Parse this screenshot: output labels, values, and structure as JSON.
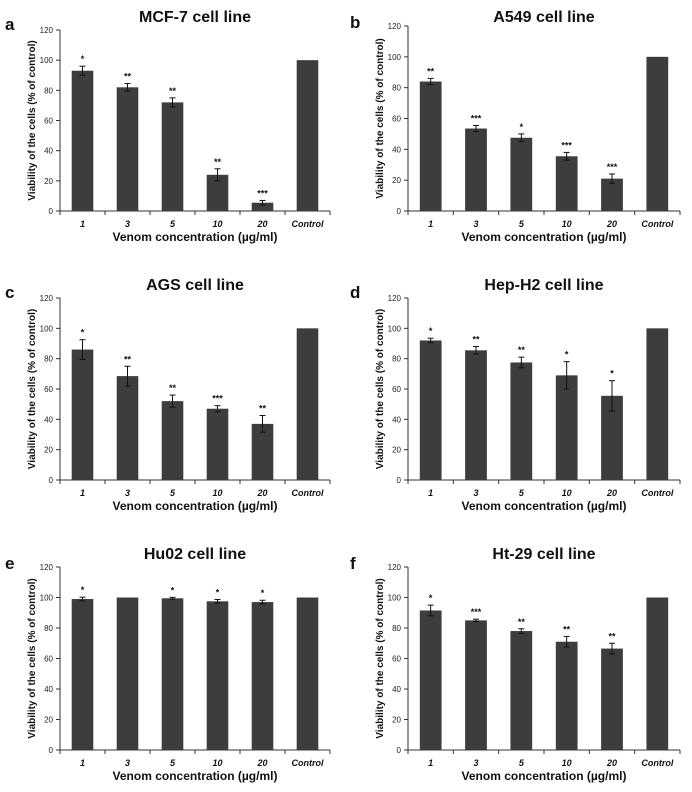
{
  "chart_data": [
    {
      "panel_letter": "a",
      "type": "bar",
      "title": "MCF-7 cell line",
      "ylabel": "Viability of the cells (% of control)",
      "xlabel": "Venom concentration (µg/ml)",
      "ylim": [
        0,
        120
      ],
      "yticks": [
        0,
        20,
        40,
        60,
        80,
        100,
        120
      ],
      "categories": [
        "1",
        "3",
        "5",
        "10",
        "20",
        "Control"
      ],
      "values": [
        93,
        82,
        72,
        24,
        5.5,
        100
      ],
      "errors": [
        3,
        2.5,
        3,
        4,
        1.5,
        0
      ],
      "significance": [
        "*",
        "**",
        "**",
        "**",
        "***",
        ""
      ],
      "grid": false,
      "color": "#3d3d3d"
    },
    {
      "panel_letter": "b",
      "type": "bar",
      "title": "A549 cell line",
      "ylabel": "Viability of the cells (% of control)",
      "xlabel": "Venom concentration (µg/ml)",
      "ylim": [
        0,
        120
      ],
      "yticks": [
        0,
        20,
        40,
        60,
        80,
        100,
        120
      ],
      "categories": [
        "1",
        "3",
        "5",
        "10",
        "20",
        "Control"
      ],
      "values": [
        84,
        53.5,
        47.5,
        35.5,
        21,
        100
      ],
      "errors": [
        2,
        2,
        2.5,
        2.5,
        3,
        0
      ],
      "significance": [
        "**",
        "***",
        "*",
        "***",
        "***",
        ""
      ],
      "grid": false,
      "color": "#3d3d3d"
    },
    {
      "panel_letter": "c",
      "type": "bar",
      "title": "AGS cell line",
      "ylabel": "Viability of the cells (% of control)",
      "xlabel": "Venom concentration (µg/ml)",
      "ylim": [
        0,
        120
      ],
      "yticks": [
        0,
        20,
        40,
        60,
        80,
        100,
        120
      ],
      "categories": [
        "1",
        "3",
        "5",
        "10",
        "20",
        "Control"
      ],
      "values": [
        86,
        68.5,
        52,
        47,
        37,
        100
      ],
      "errors": [
        6.5,
        6.5,
        4,
        2,
        5.5,
        0
      ],
      "significance": [
        "*",
        "**",
        "**",
        "***",
        "**",
        ""
      ],
      "grid": false,
      "color": "#3d3d3d"
    },
    {
      "panel_letter": "d",
      "type": "bar",
      "title": "Hep-H2 cell line",
      "ylabel": "Viability of the cells (% of control)",
      "xlabel": "Venom concentration (µg/ml)",
      "ylim": [
        0,
        120
      ],
      "yticks": [
        0,
        20,
        40,
        60,
        80,
        100,
        120
      ],
      "categories": [
        "1",
        "3",
        "5",
        "10",
        "20",
        "Control"
      ],
      "values": [
        92,
        85.5,
        77.5,
        69,
        55.5,
        100
      ],
      "errors": [
        1.5,
        2.5,
        3.5,
        9,
        10,
        0
      ],
      "significance": [
        "*",
        "**",
        "**",
        "*",
        "*",
        ""
      ],
      "grid": false,
      "color": "#3d3d3d"
    },
    {
      "panel_letter": "e",
      "type": "bar",
      "title": "Hu02 cell line",
      "ylabel": "Viability of the cells (% of control)",
      "xlabel": "Venom concentration (µg/ml)",
      "ylim": [
        0,
        120
      ],
      "yticks": [
        0,
        20,
        40,
        60,
        80,
        100,
        120
      ],
      "categories": [
        "1",
        "3",
        "5",
        "10",
        "20",
        "Control"
      ],
      "values": [
        99,
        100,
        99.5,
        97.5,
        97,
        100
      ],
      "errors": [
        1.2,
        0,
        0.6,
        1.2,
        1.2,
        0
      ],
      "significance": [
        "*",
        "",
        "*",
        "*",
        "*",
        ""
      ],
      "grid": false,
      "color": "#3d3d3d"
    },
    {
      "panel_letter": "f",
      "type": "bar",
      "title": "Ht-29 cell line",
      "ylabel": "Viability of the cells (% of control)",
      "xlabel": "Venom concentration (µg/ml)",
      "ylim": [
        0,
        120
      ],
      "yticks": [
        0,
        20,
        40,
        60,
        80,
        100,
        120
      ],
      "categories": [
        "1",
        "3",
        "5",
        "10",
        "20",
        "Control"
      ],
      "values": [
        91.5,
        85,
        78,
        71,
        66.5,
        100
      ],
      "errors": [
        3.5,
        0.8,
        1.5,
        3.5,
        3.5,
        0
      ],
      "significance": [
        "*",
        "***",
        "**",
        "**",
        "**",
        ""
      ],
      "grid": false,
      "color": "#3d3d3d"
    }
  ]
}
